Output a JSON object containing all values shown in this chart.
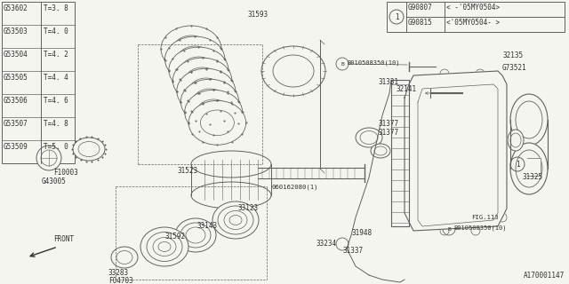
{
  "bg_color": "#f5f5f0",
  "line_color": "#606060",
  "text_color": "#303030",
  "fig_width": 6.4,
  "fig_height": 3.2,
  "dpi": 100,
  "parts_table": {
    "rows": [
      [
        "G53602",
        "T=3. 8"
      ],
      [
        "G53503",
        "T=4. 0"
      ],
      [
        "G53504",
        "T=4. 2"
      ],
      [
        "G53505",
        "T=4. 4"
      ],
      [
        "G53506",
        "T=4. 6"
      ],
      [
        "G53507",
        "T=4. 8"
      ],
      [
        "G53509",
        "T=5. 0"
      ]
    ]
  },
  "legend_rows": [
    [
      "G90807",
      "< -'05MY0504>"
    ],
    [
      "G90815",
      "<'05MY0504- >"
    ]
  ],
  "watermark": "A170001147"
}
